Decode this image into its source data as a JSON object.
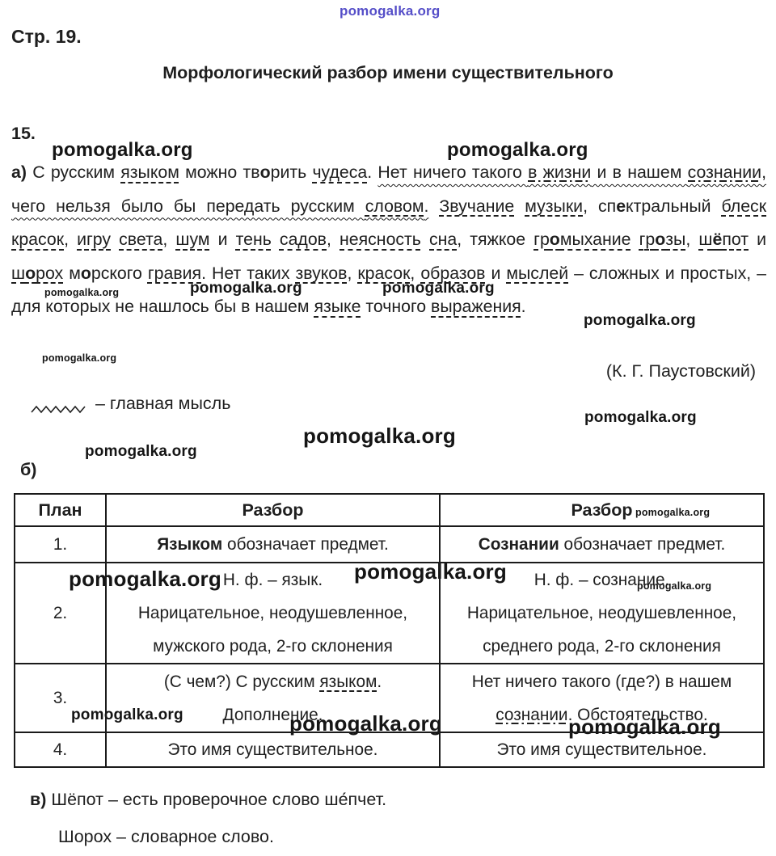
{
  "watermark": {
    "text": "pomogalka.org",
    "top_color": "#4740c4"
  },
  "header": {
    "page_label": "Стр. 19.",
    "title": "Морфологический разбор имени существительного"
  },
  "exercise": {
    "number": "15."
  },
  "part_a": {
    "runs": [
      {
        "text": "**а)** С русским {d:языком} можно тв**о**рить {d:чудеса}. ",
        "wavy": false
      },
      {
        "text": "Нет ничего такого {dd:в жизни} и в нашем {dd:сознании}, чего нельзя было бы передать русским {d:словом}.",
        "wavy": true
      },
      {
        "text": " {d:Звучание} {d:музыки}, сп**е**ктральный {d:блеск} {d:красок}, {d:игру} {d:света}, {d:шум} и {d:тень} {d:садов}, {d:неясность} {d:сна}, тяжкое {d:гр**о**мыхание} {d:гр**о**зы}, {d:ш**ё**пот} и {d:ш**о**рох} м**о**рского {d:гравия}. Нет таких {d:звуков}, {d:красок}, {d:образов} и {d:мыслей} – сложных и простых, – для которых не нашлось бы в нашем {d:языке} точного {d:выражения}.",
        "wavy": false
      }
    ],
    "author": "(К. Г. Паустовский)",
    "legend_label": "– главная мысль"
  },
  "part_b": {
    "label": "б)",
    "table": {
      "headers": [
        "План",
        "Разбор",
        "Разбор"
      ],
      "rows": [
        {
          "num": "1.",
          "left": [
            "**Языком** обозначает предмет."
          ],
          "right": [
            "**Сознании** обозначает предмет."
          ]
        },
        {
          "num": "2.",
          "left": [
            "Н. ф. – язык.",
            "Нарицательное, неодушевленное,",
            "мужского рода, 2-го склонения"
          ],
          "right": [
            "Н. ф. – сознание.",
            "Нарицательное, неодушевленное,",
            "среднего рода, 2-го склонения"
          ]
        },
        {
          "num": "3.",
          "left": [
            "(С чем?) С русским {d:языком}.",
            "Дополнение."
          ],
          "right": [
            "Нет ничего такого (где?) в нашем",
            "{dd:сознании}. Обстоятельство."
          ]
        },
        {
          "num": "4.",
          "left": [
            "Это имя существительное."
          ],
          "right": [
            "Это имя существительное."
          ]
        }
      ]
    }
  },
  "part_v": {
    "lines": [
      "**в)** Шёпот – есть проверочное слово ше́пчет.",
      "Шорох – словарное слово."
    ]
  }
}
